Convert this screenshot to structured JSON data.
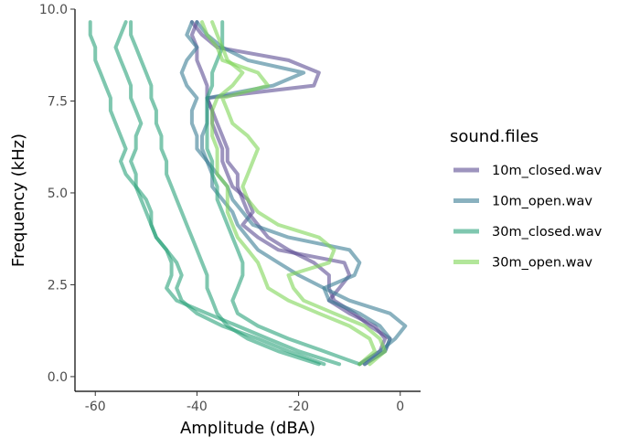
{
  "chart_data": {
    "type": "line",
    "orientation": "frequency-on-y",
    "xlabel": "Amplitude (dBA)",
    "ylabel": "Frequency (kHz)",
    "xlim": [
      -64,
      4
    ],
    "ylim": [
      -0.4,
      10.0
    ],
    "x_ticks": [
      -60,
      -40,
      -20,
      0
    ],
    "x_tick_labels": [
      "-60",
      "-40",
      "-20",
      "0"
    ],
    "y_ticks": [
      0.0,
      2.5,
      5.0,
      7.5,
      10.0
    ],
    "y_tick_labels": [
      "0.0",
      "2.5",
      "5.0",
      "7.5",
      "10.0"
    ],
    "grid": false,
    "legend": {
      "title": "sound.files",
      "placement": "right",
      "entries": [
        "10m_closed.wav",
        "10m_open.wav",
        "30m_closed.wav",
        "30m_open.wav"
      ]
    },
    "line_opacity": 0.6,
    "frequency_khz": [
      0.34,
      0.69,
      1.03,
      1.38,
      1.72,
      2.07,
      2.41,
      2.76,
      3.1,
      3.45,
      3.79,
      4.13,
      4.48,
      4.82,
      5.17,
      5.51,
      5.86,
      6.2,
      6.55,
      6.89,
      7.24,
      7.58,
      7.92,
      8.27,
      8.61,
      8.96,
      9.3,
      9.65
    ],
    "series": [
      {
        "name": "10m_closed.wav",
        "color": "#5b4c92",
        "curves": [
          [
            -7,
            -3,
            -2,
            -6,
            -9,
            -13,
            -14,
            -14,
            -17,
            -22,
            -26,
            -28,
            -30,
            -31,
            -32,
            -32,
            -34,
            -34,
            -35,
            -36,
            -37,
            -38,
            -38,
            -39,
            -40,
            -40,
            -41,
            -40
          ],
          [
            -8,
            -4,
            -3,
            -5,
            -10,
            -14,
            -12,
            -10,
            -11,
            -24,
            -28,
            -31,
            -29,
            -30,
            -33,
            -34,
            -35,
            -35,
            -36,
            -37,
            -37,
            -38,
            -17,
            -16,
            -22,
            -36,
            -39,
            -41
          ]
        ]
      },
      {
        "name": "10m_open.wav",
        "color": "#3b7d95",
        "curves": [
          [
            -8,
            -4,
            -1,
            1,
            -2,
            -10,
            -15,
            -9,
            -8,
            -10,
            -22,
            -29,
            -31,
            -33,
            -34,
            -36,
            -38,
            -39,
            -39,
            -38,
            -38,
            -38,
            -25,
            -19,
            -30,
            -35,
            -38,
            -40
          ],
          [
            -7,
            -3,
            -2,
            -4,
            -8,
            -14,
            -15,
            -20,
            -24,
            -28,
            -30,
            -32,
            -33,
            -35,
            -37,
            -37,
            -38,
            -40,
            -40,
            -41,
            -41,
            -40,
            -42,
            -43,
            -42,
            -40,
            -42,
            -41
          ]
        ]
      },
      {
        "name": "30m_closed.wav",
        "color": "#2aa17a",
        "curves": [
          [
            -12,
            -20,
            -26,
            -32,
            -38,
            -44,
            -46,
            -45,
            -45,
            -46,
            -48,
            -49,
            -49,
            -50,
            -52,
            -54,
            -55,
            -54,
            -55,
            -56,
            -57,
            -57,
            -58,
            -59,
            -60,
            -60,
            -61,
            -61
          ],
          [
            -15,
            -22,
            -28,
            -35,
            -40,
            -43,
            -44,
            -43,
            -44,
            -46,
            -48,
            -49,
            -50,
            -51,
            -52,
            -52,
            -53,
            -52,
            -52,
            -51,
            -52,
            -53,
            -53,
            -54,
            -55,
            -56,
            -55,
            -54
          ],
          [
            -16,
            -24,
            -30,
            -34,
            -36,
            -37,
            -38,
            -38,
            -39,
            -40,
            -41,
            -42,
            -43,
            -44,
            -45,
            -46,
            -46,
            -47,
            -47,
            -48,
            -48,
            -49,
            -49,
            -50,
            -51,
            -52,
            -53,
            -53
          ],
          [
            -8,
            -15,
            -22,
            -28,
            -32,
            -33,
            -32,
            -31,
            -31,
            -32,
            -33,
            -34,
            -35,
            -36,
            -36,
            -37,
            -37,
            -38,
            -38,
            -38,
            -38,
            -38,
            -37,
            -37,
            -36,
            -35,
            -35,
            -35
          ]
        ]
      },
      {
        "name": "30m_open.wav",
        "color": "#7ed657",
        "curves": [
          [
            -6,
            -3,
            -4,
            -7,
            -13,
            -19,
            -21,
            -22,
            -14,
            -13,
            -16,
            -24,
            -28,
            -30,
            -31,
            -30,
            -29,
            -28,
            -30,
            -33,
            -34,
            -35,
            -26,
            -28,
            -35,
            -36,
            -38,
            -39
          ],
          [
            -8,
            -5,
            -6,
            -10,
            -16,
            -22,
            -26,
            -27,
            -28,
            -30,
            -32,
            -33,
            -34,
            -34,
            -34,
            -36,
            -36,
            -36,
            -37,
            -37,
            -37,
            -36,
            -33,
            -31,
            -34,
            -35,
            -36,
            -37
          ]
        ]
      }
    ]
  }
}
